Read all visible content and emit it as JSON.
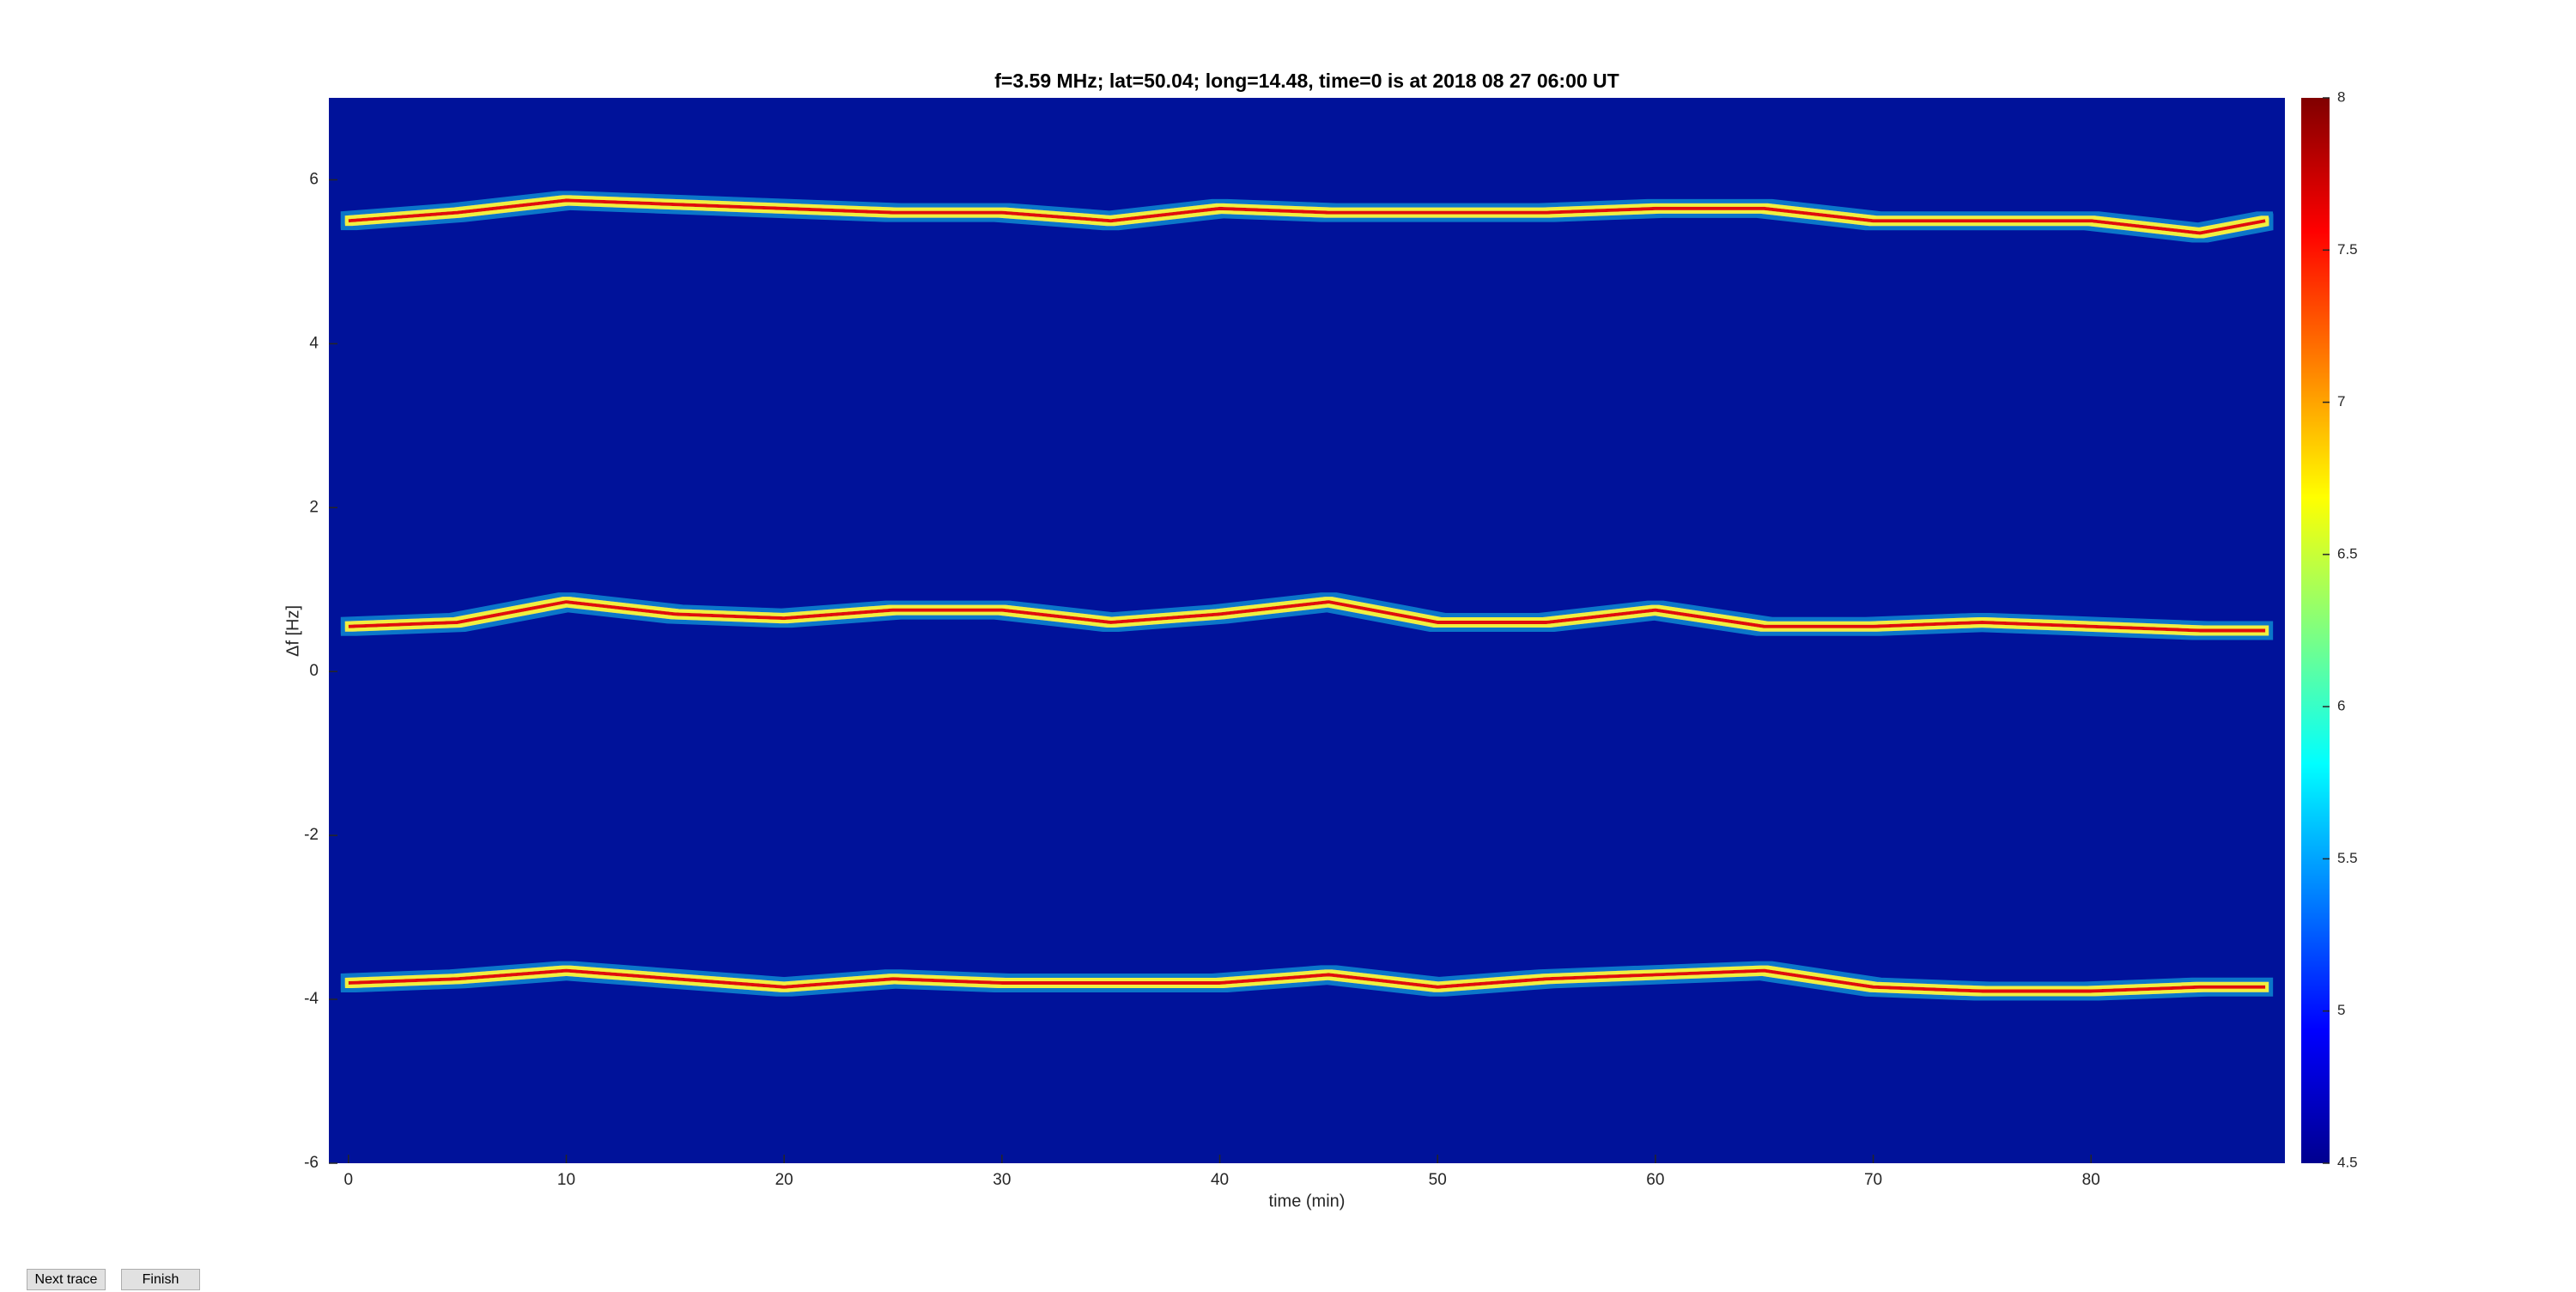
{
  "chart_data": {
    "type": "spectrogram",
    "title": "f=3.59 MHz;  lat=50.04; long=14.48, time=0 is at 2018 08 27 06:00 UT",
    "x_label": "time (min)",
    "y_label": "Δf [Hz]",
    "x": [
      0,
      5,
      10,
      15,
      20,
      25,
      30,
      35,
      40,
      45,
      50,
      55,
      60,
      65,
      70,
      75,
      80,
      85,
      88
    ],
    "series": [
      {
        "color": "#e01010",
        "values": [
          5.5,
          5.6,
          5.75,
          5.7,
          5.65,
          5.6,
          5.6,
          5.5,
          5.65,
          5.6,
          5.6,
          5.6,
          5.65,
          5.65,
          5.5,
          5.5,
          5.5,
          5.35,
          5.5
        ]
      },
      {
        "color": "#e01010",
        "values": [
          0.55,
          0.6,
          0.85,
          0.7,
          0.65,
          0.75,
          0.75,
          0.6,
          0.7,
          0.85,
          0.6,
          0.6,
          0.75,
          0.55,
          0.55,
          0.6,
          0.55,
          0.5,
          0.5
        ]
      },
      {
        "color": "#e01010",
        "values": [
          -3.8,
          -3.75,
          -3.65,
          -3.75,
          -3.85,
          -3.75,
          -3.8,
          -3.8,
          -3.8,
          -3.7,
          -3.85,
          -3.75,
          -3.7,
          -3.65,
          -3.85,
          -3.9,
          -3.9,
          -3.85,
          -3.85
        ]
      }
    ],
    "background": "#00129a",
    "xlim": [
      -0.9,
      88.9
    ],
    "xticks": [
      0,
      10,
      20,
      30,
      40,
      50,
      60,
      70,
      80
    ],
    "ylim": [
      -6,
      7
    ],
    "yticks": [
      -6,
      -4,
      -2,
      0,
      2,
      4,
      6
    ],
    "clim": [
      4.5,
      8
    ],
    "cticks": [
      4.5,
      5,
      5.5,
      6,
      6.5,
      7,
      7.5,
      8
    ]
  },
  "buttons": [
    "Next trace",
    "Finish"
  ]
}
